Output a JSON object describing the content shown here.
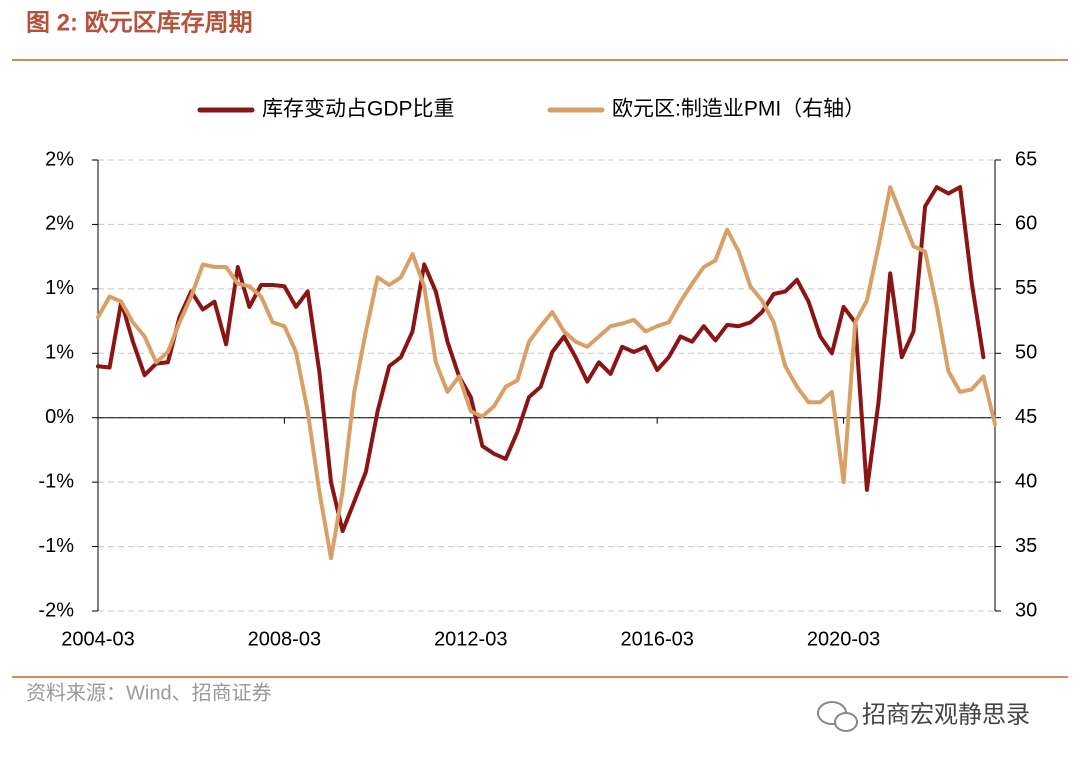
{
  "chart_data": {
    "type": "line",
    "title": "图 2:  欧元区库存周期",
    "source": "资料来源：Wind、招商证券",
    "watermark": "招商宏观静思录",
    "x": [
      "2004-03",
      "2004-06",
      "2004-09",
      "2004-12",
      "2005-03",
      "2005-06",
      "2005-09",
      "2005-12",
      "2006-03",
      "2006-06",
      "2006-09",
      "2006-12",
      "2007-03",
      "2007-06",
      "2007-09",
      "2007-12",
      "2008-03",
      "2008-06",
      "2008-09",
      "2008-12",
      "2009-03",
      "2009-06",
      "2009-09",
      "2009-12",
      "2010-03",
      "2010-06",
      "2010-09",
      "2010-12",
      "2011-03",
      "2011-06",
      "2011-09",
      "2011-12",
      "2012-03",
      "2012-06",
      "2012-09",
      "2012-12",
      "2013-03",
      "2013-06",
      "2013-09",
      "2013-12",
      "2014-03",
      "2014-06",
      "2014-09",
      "2014-12",
      "2015-03",
      "2015-06",
      "2015-09",
      "2015-12",
      "2016-03",
      "2016-06",
      "2016-09",
      "2016-12",
      "2017-03",
      "2017-06",
      "2017-09",
      "2017-12",
      "2018-03",
      "2018-06",
      "2018-09",
      "2018-12",
      "2019-03",
      "2019-06",
      "2019-09",
      "2019-12",
      "2020-03",
      "2020-06",
      "2020-09",
      "2020-12",
      "2021-03",
      "2021-06",
      "2021-09",
      "2021-12",
      "2022-03",
      "2022-06",
      "2022-09",
      "2022-12",
      "2023-03",
      "2023-06"
    ],
    "xticks": [
      "2004-03",
      "2008-03",
      "2012-03",
      "2016-03",
      "2020-03"
    ],
    "ylim": [
      -1.5,
      2.0
    ],
    "yticks": [
      {
        "value": -1.5,
        "label": "-2%"
      },
      {
        "value": -1.0,
        "label": "-1%"
      },
      {
        "value": -0.5,
        "label": "-1%"
      },
      {
        "value": 0,
        "label": "0%"
      },
      {
        "value": 0.5,
        "label": "1%"
      },
      {
        "value": 1.0,
        "label": "1%"
      },
      {
        "value": 1.5,
        "label": "2%"
      },
      {
        "value": 2.0,
        "label": "2%"
      }
    ],
    "y2lim": [
      30,
      65
    ],
    "y2ticks": [
      30,
      35,
      40,
      45,
      50,
      55,
      60,
      65
    ],
    "grid": true,
    "legend": "top",
    "series": [
      {
        "name": "库存变动占GDP比重",
        "color": "#8b1414",
        "values": [
          0.4,
          0.39,
          0.9,
          0.59,
          0.33,
          0.42,
          0.43,
          0.78,
          0.98,
          0.84,
          0.9,
          0.57,
          1.17,
          0.86,
          1.03,
          1.03,
          1.02,
          0.86,
          0.98,
          0.36,
          -0.5,
          -0.88,
          -0.65,
          -0.42,
          0.05,
          0.4,
          0.47,
          0.67,
          1.19,
          0.98,
          0.59,
          0.32,
          0.16,
          -0.22,
          -0.28,
          -0.32,
          -0.11,
          0.16,
          0.24,
          0.51,
          0.63,
          0.47,
          0.28,
          0.43,
          0.34,
          0.55,
          0.51,
          0.55,
          0.37,
          0.47,
          0.63,
          0.59,
          0.71,
          0.6,
          0.72,
          0.71,
          0.74,
          0.82,
          0.96,
          0.98,
          1.07,
          0.9,
          0.63,
          0.5,
          0.86,
          0.74,
          -0.56,
          0.12,
          1.12,
          0.47,
          0.67,
          1.64,
          1.79,
          1.74,
          1.79,
          1.05,
          0.47,
          null
        ]
      },
      {
        "name": "欧元区:制造业PMI（右轴）",
        "color": "#d9a066",
        "axis": "y2",
        "values": [
          52.8,
          54.4,
          54.0,
          52.4,
          51.3,
          49.3,
          50.1,
          52.4,
          54.4,
          56.9,
          56.7,
          56.7,
          55.4,
          55.2,
          54.4,
          52.4,
          52.1,
          50.1,
          45.5,
          39.3,
          34.1,
          39.3,
          47.0,
          51.7,
          55.9,
          55.3,
          55.9,
          57.7,
          55.2,
          49.3,
          47.0,
          48.2,
          45.5,
          45.1,
          45.9,
          47.4,
          47.9,
          50.9,
          52.1,
          53.2,
          51.7,
          50.9,
          50.5,
          51.3,
          52.1,
          52.3,
          52.6,
          51.7,
          52.1,
          52.4,
          54.0,
          55.4,
          56.7,
          57.2,
          59.6,
          57.9,
          55.2,
          54.1,
          52.4,
          49.0,
          47.4,
          46.2,
          46.2,
          47.0,
          40.0,
          52.4,
          54.1,
          58.3,
          62.9,
          60.6,
          58.3,
          57.9,
          53.6,
          48.6,
          47.0,
          47.2,
          48.2,
          44.5
        ]
      }
    ]
  }
}
